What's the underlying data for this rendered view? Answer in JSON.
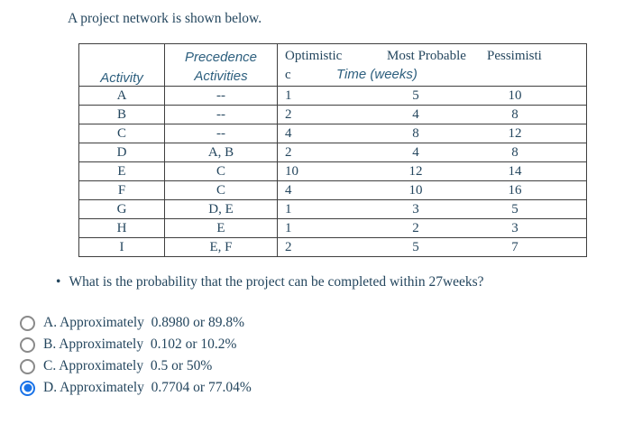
{
  "colors": {
    "accent": "#1a73e8",
    "text": "#24465e",
    "heading": "#2d5f7e",
    "border": "#3f3f3f"
  },
  "page": {
    "title": "A project network is shown below."
  },
  "table": {
    "headers": {
      "activity": "Activity",
      "precedence_line1": "Precedence",
      "precedence_line2": "Activities",
      "optimistic": "Optimistic",
      "most_probable": "Most Probable",
      "pessimistic": "Pessimisti",
      "pessimistic_wrap": "c",
      "time_label": "Time (weeks)"
    },
    "rows": [
      {
        "activity": "A",
        "precedence": "--",
        "optimistic": "1",
        "most_probable": "5",
        "pessimistic": "10"
      },
      {
        "activity": "B",
        "precedence": "--",
        "optimistic": "2",
        "most_probable": "4",
        "pessimistic": "8"
      },
      {
        "activity": "C",
        "precedence": "--",
        "optimistic": "4",
        "most_probable": "8",
        "pessimistic": "12"
      },
      {
        "activity": "D",
        "precedence": "A, B",
        "optimistic": "2",
        "most_probable": "4",
        "pessimistic": "8"
      },
      {
        "activity": "E",
        "precedence": "C",
        "optimistic": "10",
        "most_probable": "12",
        "pessimistic": "14"
      },
      {
        "activity": "F",
        "precedence": "C",
        "optimistic": "4",
        "most_probable": "10",
        "pessimistic": "16"
      },
      {
        "activity": "G",
        "precedence": "D, E",
        "optimistic": "1",
        "most_probable": "3",
        "pessimistic": "5"
      },
      {
        "activity": "H",
        "precedence": "E",
        "optimistic": "1",
        "most_probable": "2",
        "pessimistic": "3"
      },
      {
        "activity": "I",
        "precedence": "E, F",
        "optimistic": "2",
        "most_probable": "5",
        "pessimistic": "7"
      }
    ]
  },
  "question": {
    "bullet": "•",
    "text": "What is the probability that the project can be completed within 27weeks?"
  },
  "options": [
    {
      "label": "A. Approximately  0.8980 or 89.8%",
      "selected": false
    },
    {
      "label": "B. Approximately  0.102 or 10.2%",
      "selected": false
    },
    {
      "label": "C. Approximately  0.5 or 50%",
      "selected": false
    },
    {
      "label": "D. Approximately  0.7704 or 77.04%",
      "selected": true
    }
  ]
}
